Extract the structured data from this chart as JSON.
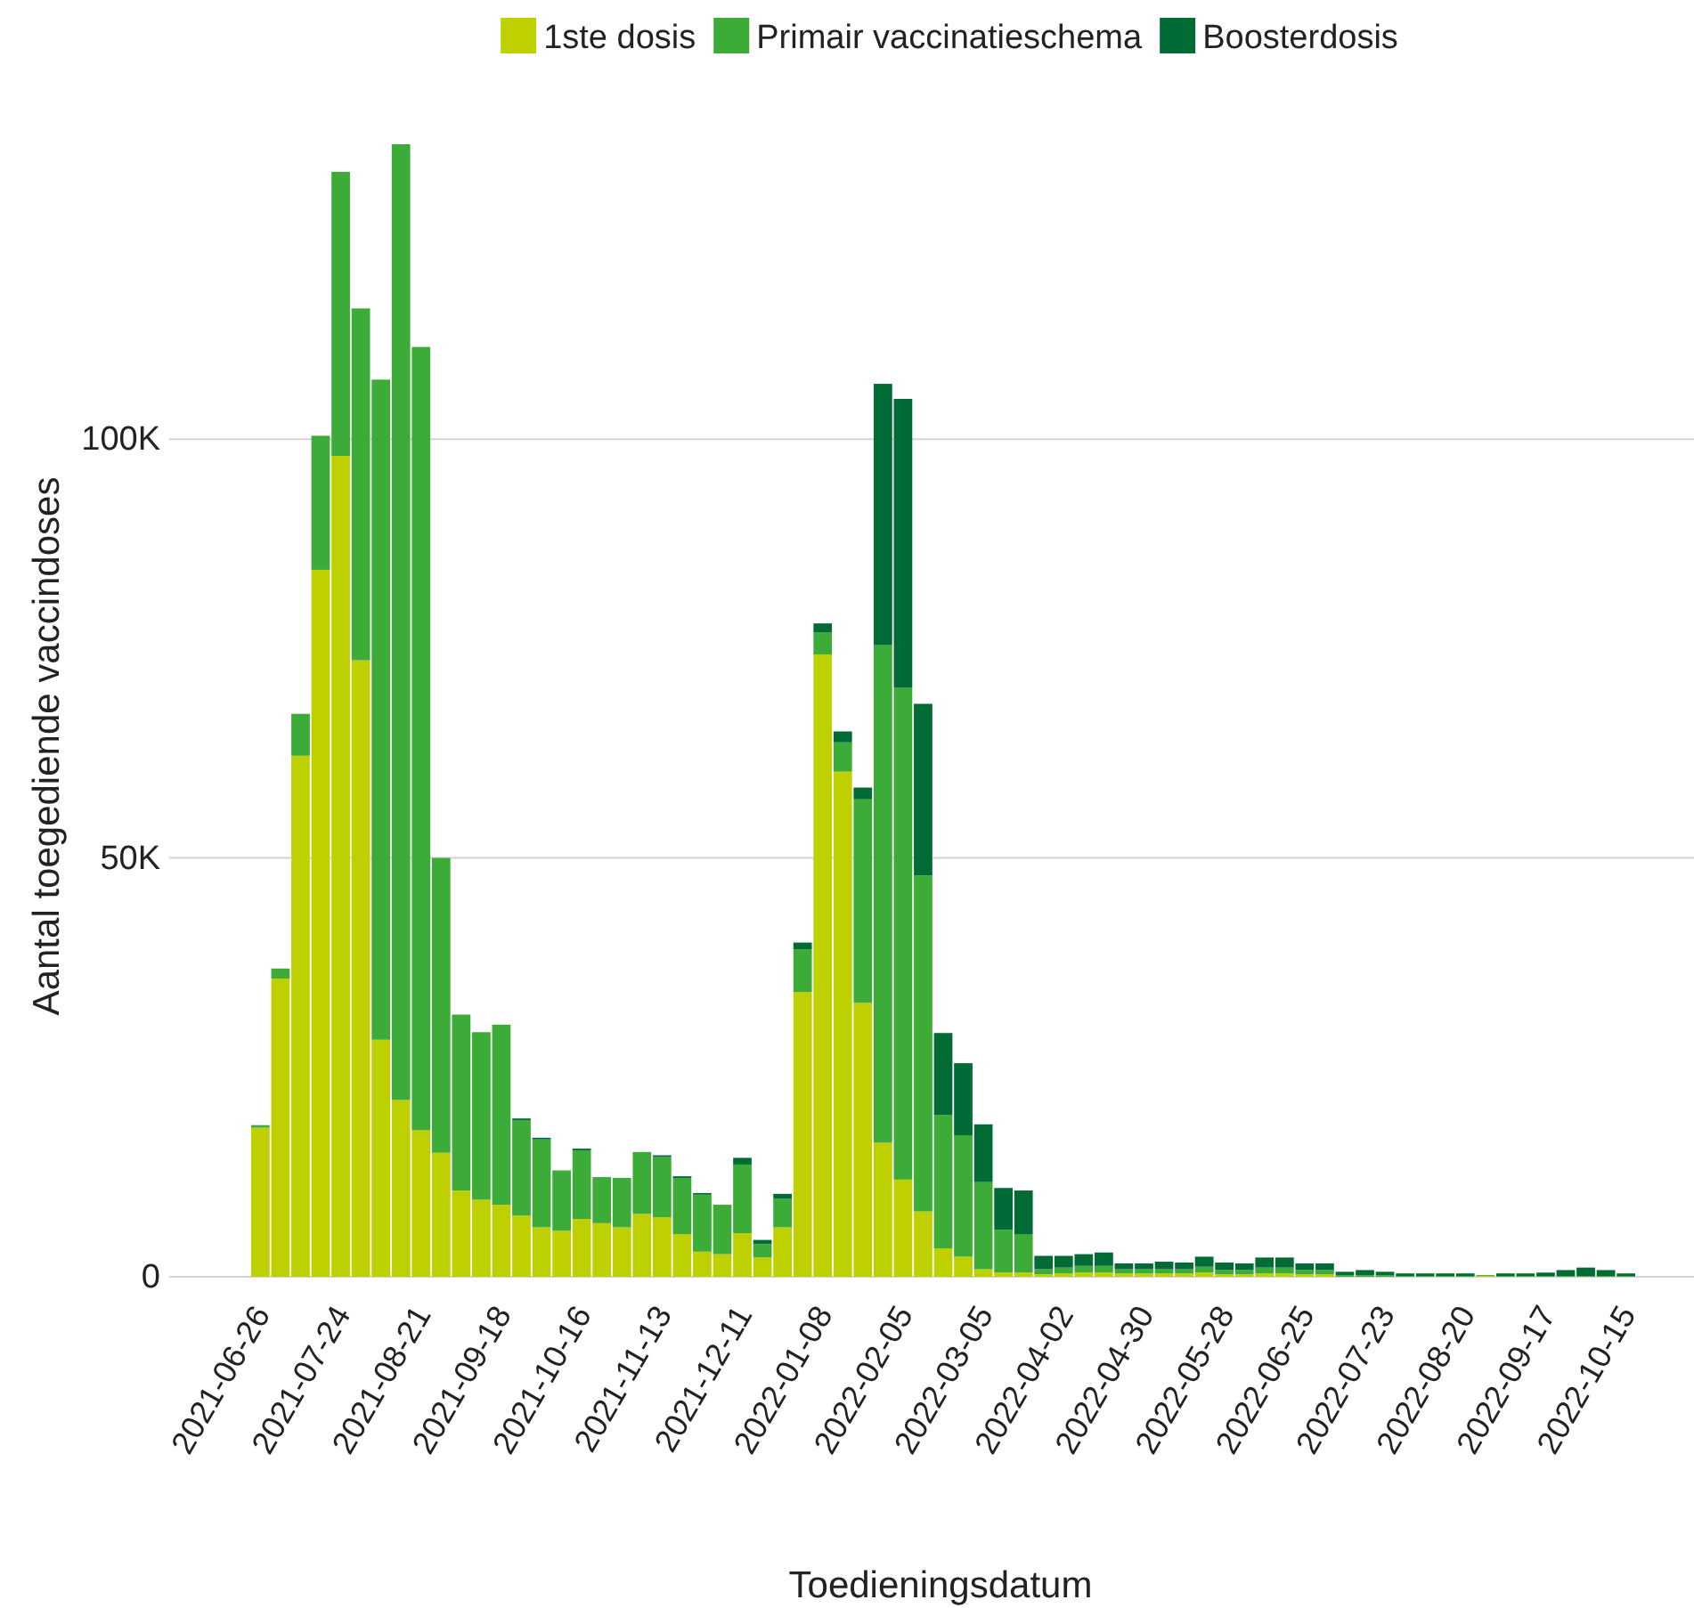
{
  "chart_data": {
    "type": "bar",
    "stacked": true,
    "xlabel": "Toedieningsdatum",
    "ylabel": "Aantal toegediende vaccindoses",
    "categories": [
      "2021-06-26",
      null,
      null,
      null,
      "2021-07-24",
      null,
      null,
      null,
      "2021-08-21",
      null,
      null,
      null,
      "2021-09-18",
      null,
      null,
      null,
      "2021-10-16",
      null,
      null,
      null,
      "2021-11-13",
      null,
      null,
      null,
      "2021-12-11",
      null,
      null,
      null,
      "2022-01-08",
      null,
      null,
      null,
      "2022-02-05",
      null,
      null,
      null,
      "2022-03-05",
      null,
      null,
      null,
      "2022-04-02",
      null,
      null,
      null,
      "2022-04-30",
      null,
      null,
      null,
      "2022-05-28",
      null,
      null,
      null,
      "2022-06-25",
      null,
      null,
      null,
      "2022-07-23",
      null,
      null,
      null,
      "2022-08-20",
      null,
      null,
      null,
      "2022-09-17",
      null,
      null,
      null,
      "2022-10-15"
    ],
    "series": [
      {
        "name": "1ste dosis",
        "color": "#bfd000",
        "values": [
          17800,
          35600,
          62200,
          84400,
          98000,
          73600,
          28300,
          21100,
          17500,
          14800,
          10300,
          9200,
          8600,
          7300,
          5900,
          5500,
          6900,
          6400,
          5900,
          7500,
          7100,
          5100,
          3000,
          2700,
          5200,
          2300,
          5900,
          34000,
          74300,
          60300,
          32700,
          16000,
          11600,
          7800,
          3400,
          2400,
          900,
          500,
          500,
          300,
          400,
          500,
          500,
          400,
          400,
          400,
          400,
          500,
          300,
          300,
          400,
          400,
          300,
          300,
          0,
          0,
          0,
          0,
          0,
          0,
          0,
          100,
          0,
          0,
          0,
          0,
          0,
          0,
          0
        ]
      },
      {
        "name": "Primair vaccinatieschema",
        "color": "#3dab37",
        "values": [
          300,
          1200,
          5000,
          16000,
          33900,
          42000,
          78800,
          114100,
          93500,
          35200,
          21000,
          20000,
          21500,
          11400,
          10500,
          7200,
          8200,
          5500,
          5900,
          7400,
          7200,
          6700,
          6800,
          5900,
          8200,
          1600,
          3400,
          5100,
          2600,
          3500,
          24300,
          59400,
          58700,
          40100,
          15900,
          14500,
          10400,
          5100,
          4600,
          600,
          700,
          800,
          800,
          500,
          500,
          500,
          500,
          700,
          500,
          500,
          700,
          700,
          500,
          500,
          200,
          200,
          200,
          100,
          100,
          100,
          100,
          100,
          100,
          100,
          100,
          100,
          100,
          100,
          100
        ]
      },
      {
        "name": "Boosterdosis",
        "color": "#006b35",
        "values": [
          0,
          0,
          0,
          0,
          0,
          0,
          0,
          0,
          0,
          0,
          0,
          0,
          0,
          200,
          200,
          0,
          200,
          0,
          0,
          0,
          200,
          200,
          200,
          0,
          800,
          500,
          600,
          800,
          1100,
          1300,
          1400,
          31200,
          34500,
          20500,
          9800,
          8600,
          6900,
          5000,
          5200,
          1600,
          1400,
          1400,
          1600,
          700,
          700,
          900,
          800,
          1200,
          900,
          800,
          1200,
          1200,
          800,
          800,
          400,
          600,
          400,
          300,
          300,
          300,
          300,
          0,
          300,
          300,
          400,
          700,
          1000,
          700,
          300
        ]
      }
    ],
    "ylim": [
      0,
      135200
    ],
    "yticks": [
      0,
      {
        "value": 50000,
        "label": "50K"
      },
      {
        "value": 100000,
        "label": "100K"
      }
    ],
    "grid": "y",
    "legend": "top"
  }
}
